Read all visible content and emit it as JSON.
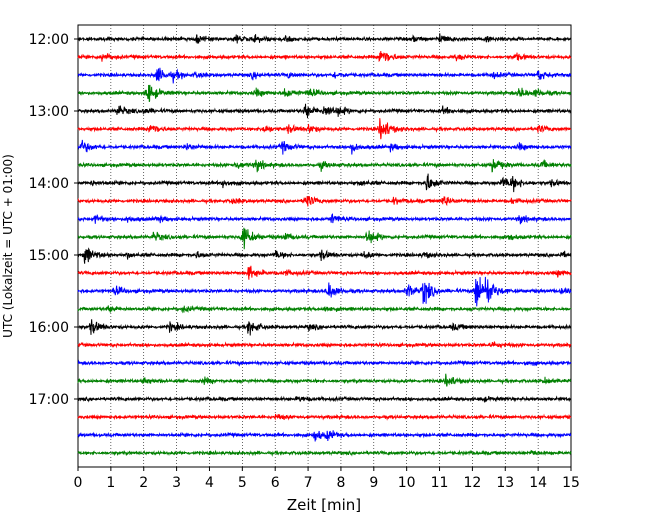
{
  "chart_data": {
    "type": "line",
    "title": "",
    "xlabel": "Zeit  [min]",
    "ylabel": "UTC (Lokalzeit = UTC + 01:00)",
    "xlim": [
      0,
      15
    ],
    "x_ticks": [
      "0",
      "1",
      "2",
      "3",
      "4",
      "5",
      "6",
      "7",
      "8",
      "9",
      "10",
      "11",
      "12",
      "13",
      "14",
      "15"
    ],
    "y_ticks": [
      {
        "label": "12:00",
        "row": 0
      },
      {
        "label": "13:00",
        "row": 4
      },
      {
        "label": "14:00",
        "row": 8
      },
      {
        "label": "15:00",
        "row": 12
      },
      {
        "label": "16:00",
        "row": 16
      },
      {
        "label": "17:00",
        "row": 20
      }
    ],
    "grid": "vertical dotted",
    "trace_minutes": 15,
    "colors": [
      "#000000",
      "#ff0000",
      "#0000ff",
      "#008000"
    ],
    "series": [
      {
        "start": "12:00",
        "color": "#000000",
        "events": [
          [
            3.6,
            0.4
          ],
          [
            4.8,
            0.5
          ],
          [
            5.4,
            0.35
          ],
          [
            6.3,
            0.3
          ],
          [
            10.2,
            0.3
          ],
          [
            11.0,
            0.5
          ],
          [
            12.4,
            0.3
          ]
        ]
      },
      {
        "start": "12:15",
        "color": "#ff0000",
        "events": [
          [
            0.7,
            0.5
          ],
          [
            9.2,
            1.2
          ],
          [
            11.5,
            0.3
          ],
          [
            13.3,
            0.35
          ]
        ]
      },
      {
        "start": "12:30",
        "color": "#0000ff",
        "events": [
          [
            2.4,
            0.8
          ],
          [
            2.9,
            0.4
          ],
          [
            3.6,
            0.3
          ],
          [
            5.3,
            0.3
          ],
          [
            6.4,
            0.3
          ],
          [
            7.8,
            0.3
          ],
          [
            12.6,
            0.35
          ],
          [
            14.0,
            0.6
          ]
        ]
      },
      {
        "start": "12:45",
        "color": "#008000",
        "events": [
          [
            2.1,
            1.3
          ],
          [
            5.4,
            0.4
          ],
          [
            6.3,
            0.6
          ],
          [
            7.0,
            0.5
          ],
          [
            13.4,
            0.6
          ],
          [
            13.9,
            0.4
          ]
        ]
      },
      {
        "start": "13:00",
        "color": "#000000",
        "events": [
          [
            1.2,
            0.6
          ],
          [
            2.0,
            0.3
          ],
          [
            6.9,
            0.8
          ],
          [
            7.5,
            0.8
          ],
          [
            7.9,
            0.4
          ],
          [
            11.1,
            0.35
          ]
        ]
      },
      {
        "start": "13:15",
        "color": "#ff0000",
        "events": [
          [
            2.2,
            0.7
          ],
          [
            5.6,
            0.5
          ],
          [
            6.4,
            0.4
          ],
          [
            7.0,
            0.4
          ],
          [
            9.2,
            1.4
          ],
          [
            14.0,
            0.35
          ]
        ]
      },
      {
        "start": "13:30",
        "color": "#0000ff",
        "events": [
          [
            0.1,
            0.7
          ],
          [
            3.3,
            0.4
          ],
          [
            6.2,
            0.6
          ],
          [
            8.3,
            0.5
          ],
          [
            9.5,
            0.3
          ],
          [
            13.4,
            0.35
          ]
        ]
      },
      {
        "start": "13:45",
        "color": "#008000",
        "events": [
          [
            4.8,
            0.4
          ],
          [
            5.4,
            0.6
          ],
          [
            7.4,
            0.4
          ],
          [
            12.6,
            0.8
          ],
          [
            14.1,
            0.4
          ]
        ]
      },
      {
        "start": "14:00",
        "color": "#000000",
        "events": [
          [
            0.4,
            0.3
          ],
          [
            4.4,
            0.4
          ],
          [
            8.6,
            0.3
          ],
          [
            10.6,
            1.0
          ],
          [
            12.9,
            0.6
          ],
          [
            13.2,
            0.6
          ],
          [
            14.4,
            0.3
          ]
        ]
      },
      {
        "start": "14:15",
        "color": "#ff0000",
        "events": [
          [
            4.7,
            0.3
          ],
          [
            6.9,
            0.8
          ],
          [
            9.6,
            0.3
          ],
          [
            11.1,
            0.6
          ],
          [
            13.2,
            0.3
          ]
        ]
      },
      {
        "start": "14:30",
        "color": "#0000ff",
        "events": [
          [
            0.5,
            0.4
          ],
          [
            1.5,
            0.3
          ],
          [
            2.4,
            0.3
          ],
          [
            7.7,
            0.5
          ],
          [
            13.4,
            0.4
          ]
        ]
      },
      {
        "start": "14:45",
        "color": "#008000",
        "events": [
          [
            2.3,
            0.5
          ],
          [
            5.0,
            1.3
          ],
          [
            6.3,
            0.4
          ],
          [
            8.8,
            0.9
          ],
          [
            13.1,
            0.3
          ]
        ]
      },
      {
        "start": "15:00",
        "color": "#000000",
        "events": [
          [
            0.2,
            1.0
          ],
          [
            1.5,
            0.3
          ],
          [
            3.6,
            0.3
          ],
          [
            6.0,
            0.4
          ],
          [
            7.4,
            0.5
          ],
          [
            8.7,
            0.3
          ],
          [
            10.5,
            0.3
          ],
          [
            14.7,
            0.3
          ]
        ]
      },
      {
        "start": "15:15",
        "color": "#ff0000",
        "events": [
          [
            5.2,
            0.8
          ],
          [
            6.3,
            0.3
          ],
          [
            14.6,
            0.3
          ]
        ]
      },
      {
        "start": "15:30",
        "color": "#0000ff",
        "events": [
          [
            1.1,
            0.5
          ],
          [
            7.6,
            1.0
          ],
          [
            10.0,
            0.8
          ],
          [
            10.5,
            1.4
          ],
          [
            12.1,
            2.2
          ],
          [
            12.4,
            1.3
          ],
          [
            14.7,
            0.3
          ]
        ]
      },
      {
        "start": "15:45",
        "color": "#008000",
        "events": [
          [
            0.9,
            0.3
          ],
          [
            3.2,
            0.3
          ],
          [
            7.5,
            0.3
          ]
        ]
      },
      {
        "start": "16:00",
        "color": "#000000",
        "events": [
          [
            0.4,
            0.8
          ],
          [
            2.8,
            0.5
          ],
          [
            5.2,
            0.8
          ],
          [
            7.0,
            0.3
          ],
          [
            11.4,
            0.3
          ]
        ]
      },
      {
        "start": "16:15",
        "color": "#ff0000",
        "events": [
          [
            12.6,
            0.3
          ]
        ]
      },
      {
        "start": "16:30",
        "color": "#0000ff",
        "events": [
          [
            13.6,
            0.25
          ]
        ]
      },
      {
        "start": "16:45",
        "color": "#008000",
        "events": [
          [
            2.0,
            0.4
          ],
          [
            3.8,
            0.3
          ],
          [
            11.2,
            0.7
          ],
          [
            14.2,
            0.3
          ]
        ]
      },
      {
        "start": "17:00",
        "color": "#000000",
        "events": [
          [
            6.7,
            0.3
          ],
          [
            12.3,
            0.25
          ]
        ]
      },
      {
        "start": "17:15",
        "color": "#ff0000",
        "events": [
          [
            6.0,
            0.25
          ]
        ]
      },
      {
        "start": "17:30",
        "color": "#0000ff",
        "events": [
          [
            7.2,
            0.6
          ],
          [
            7.6,
            0.4
          ]
        ]
      },
      {
        "start": "17:45",
        "color": "#008000",
        "events": [
          [
            13.8,
            0.25
          ]
        ]
      }
    ]
  }
}
